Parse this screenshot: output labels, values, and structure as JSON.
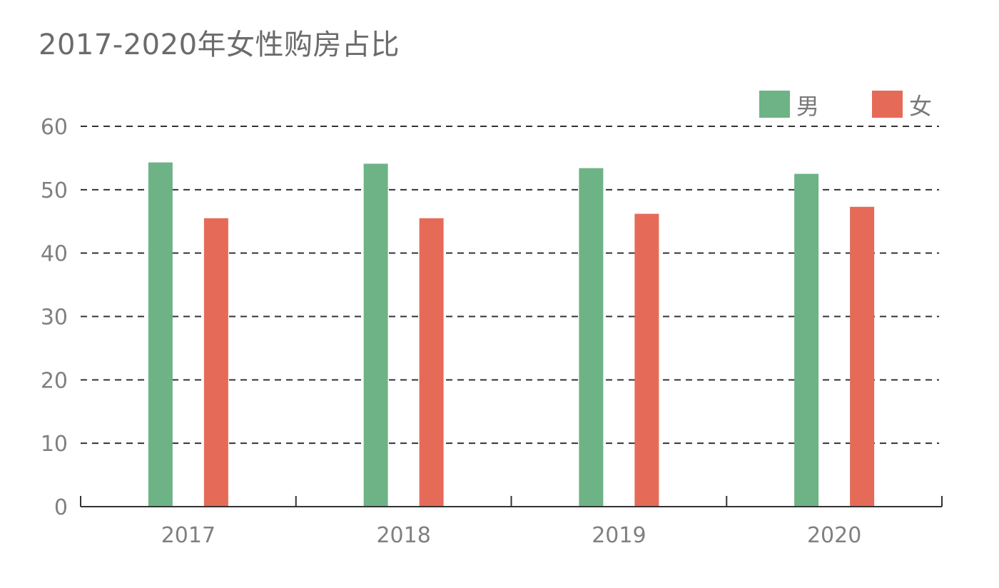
{
  "chart_data": {
    "type": "bar",
    "title": "2017-2020年女性购房占比",
    "xlabel": "",
    "ylabel": "",
    "categories": [
      "2017",
      "2018",
      "2019",
      "2020"
    ],
    "series": [
      {
        "name": "男",
        "color": "#6db386",
        "values": [
          54.3,
          54.1,
          53.4,
          52.5
        ]
      },
      {
        "name": "女",
        "color": "#e56b58",
        "values": [
          45.5,
          45.5,
          46.2,
          47.3
        ]
      }
    ],
    "ylim": [
      0,
      60
    ],
    "yticks": [
      "0",
      "10",
      "20",
      "30",
      "40",
      "50",
      "60"
    ],
    "grid": true,
    "grid_style": "dashed",
    "legend_position": "top-right"
  }
}
